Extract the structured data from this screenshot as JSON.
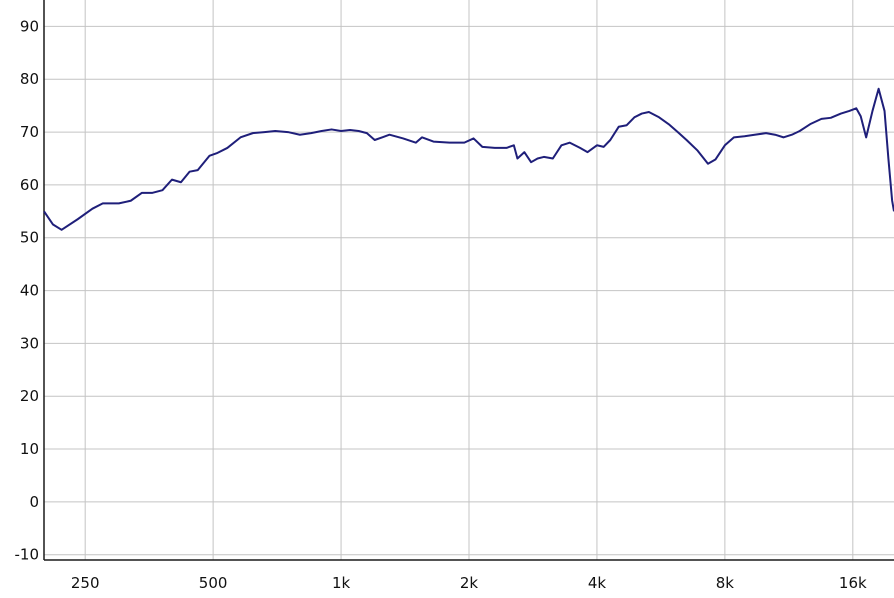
{
  "chart_data": {
    "type": "line",
    "title": "",
    "xlabel": "",
    "ylabel": "",
    "x_scale": "log",
    "xlim": [
      200,
      20000
    ],
    "ylim": [
      -11,
      95
    ],
    "grid": true,
    "colors": {
      "series": "#1f1f7a",
      "grid": "#c4c4c4",
      "axis": "#1a1a1a"
    },
    "x_ticks": [
      {
        "value": 250,
        "label": "250"
      },
      {
        "value": 500,
        "label": "500"
      },
      {
        "value": 1000,
        "label": "1k"
      },
      {
        "value": 2000,
        "label": "2k"
      },
      {
        "value": 4000,
        "label": "4k"
      },
      {
        "value": 8000,
        "label": "8k"
      },
      {
        "value": 16000,
        "label": "16k"
      }
    ],
    "y_ticks": [
      {
        "value": 90,
        "label": "90"
      },
      {
        "value": 80,
        "label": "80"
      },
      {
        "value": 70,
        "label": "70"
      },
      {
        "value": 60,
        "label": "60"
      },
      {
        "value": 50,
        "label": "50"
      },
      {
        "value": 40,
        "label": "40"
      },
      {
        "value": 30,
        "label": "30"
      },
      {
        "value": 20,
        "label": "20"
      },
      {
        "value": 10,
        "label": "10"
      },
      {
        "value": 0,
        "label": "0"
      },
      {
        "value": -10,
        "label": "-10"
      }
    ],
    "series": [
      {
        "points": [
          [
            200,
            55
          ],
          [
            210,
            52.5
          ],
          [
            220,
            51.5
          ],
          [
            240,
            53.5
          ],
          [
            260,
            55.5
          ],
          [
            275,
            56.5
          ],
          [
            300,
            56.5
          ],
          [
            320,
            57
          ],
          [
            340,
            58.5
          ],
          [
            360,
            58.5
          ],
          [
            380,
            59
          ],
          [
            400,
            61
          ],
          [
            420,
            60.5
          ],
          [
            440,
            62.5
          ],
          [
            460,
            62.8
          ],
          [
            490,
            65.5
          ],
          [
            510,
            66
          ],
          [
            540,
            67
          ],
          [
            580,
            69
          ],
          [
            620,
            69.8
          ],
          [
            660,
            70
          ],
          [
            700,
            70.2
          ],
          [
            750,
            70
          ],
          [
            800,
            69.5
          ],
          [
            850,
            69.8
          ],
          [
            900,
            70.2
          ],
          [
            950,
            70.5
          ],
          [
            1000,
            70.2
          ],
          [
            1050,
            70.4
          ],
          [
            1100,
            70.2
          ],
          [
            1150,
            69.8
          ],
          [
            1200,
            68.5
          ],
          [
            1300,
            69.5
          ],
          [
            1400,
            68.8
          ],
          [
            1500,
            68
          ],
          [
            1550,
            69
          ],
          [
            1650,
            68.2
          ],
          [
            1800,
            68
          ],
          [
            1950,
            68
          ],
          [
            2050,
            68.8
          ],
          [
            2150,
            67.2
          ],
          [
            2300,
            67
          ],
          [
            2450,
            67
          ],
          [
            2550,
            67.5
          ],
          [
            2600,
            65
          ],
          [
            2700,
            66.2
          ],
          [
            2800,
            64.3
          ],
          [
            2900,
            65
          ],
          [
            3000,
            65.3
          ],
          [
            3150,
            65
          ],
          [
            3300,
            67.5
          ],
          [
            3450,
            68
          ],
          [
            3650,
            67
          ],
          [
            3800,
            66.2
          ],
          [
            4000,
            67.5
          ],
          [
            4150,
            67.2
          ],
          [
            4300,
            68.5
          ],
          [
            4500,
            71
          ],
          [
            4700,
            71.3
          ],
          [
            4900,
            72.8
          ],
          [
            5100,
            73.5
          ],
          [
            5300,
            73.8
          ],
          [
            5600,
            72.8
          ],
          [
            5900,
            71.5
          ],
          [
            6200,
            70
          ],
          [
            6500,
            68.5
          ],
          [
            6900,
            66.5
          ],
          [
            7300,
            64
          ],
          [
            7600,
            64.8
          ],
          [
            8000,
            67.5
          ],
          [
            8400,
            69
          ],
          [
            8900,
            69.2
          ],
          [
            9400,
            69.5
          ],
          [
            10000,
            69.8
          ],
          [
            10500,
            69.5
          ],
          [
            11000,
            69
          ],
          [
            11500,
            69.5
          ],
          [
            12000,
            70.2
          ],
          [
            12700,
            71.5
          ],
          [
            13500,
            72.5
          ],
          [
            14200,
            72.7
          ],
          [
            15000,
            73.5
          ],
          [
            15700,
            74
          ],
          [
            16300,
            74.5
          ],
          [
            16700,
            73
          ],
          [
            17200,
            69
          ],
          [
            17800,
            74
          ],
          [
            18400,
            78.2
          ],
          [
            19000,
            74
          ],
          [
            19400,
            65
          ],
          [
            19800,
            57
          ],
          [
            20000,
            55
          ]
        ]
      }
    ]
  }
}
